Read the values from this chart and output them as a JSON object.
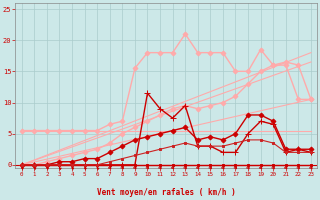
{
  "bg_color": "#cce8e8",
  "grid_color": "#aacccc",
  "axis_color": "#cc0000",
  "xlabel": "Vent moyen/en rafales ( km/h )",
  "xlabel_color": "#cc0000",
  "tick_color": "#cc0000",
  "xlim": [
    -0.5,
    23.5
  ],
  "ylim": [
    -0.5,
    26
  ],
  "yticks": [
    0,
    5,
    10,
    15,
    20,
    25
  ],
  "xticks": [
    0,
    1,
    2,
    3,
    4,
    5,
    6,
    7,
    8,
    9,
    10,
    11,
    12,
    13,
    14,
    15,
    16,
    17,
    18,
    19,
    20,
    21,
    22,
    23
  ],
  "series": [
    {
      "x": [
        0,
        23
      ],
      "y": [
        5.5,
        5.5
      ],
      "color": "#ffaaaa",
      "linewidth": 0.8,
      "marker": null,
      "linestyle": "-"
    },
    {
      "x": [
        0,
        23
      ],
      "y": [
        0,
        10.5
      ],
      "color": "#ffaaaa",
      "linewidth": 0.8,
      "marker": null,
      "linestyle": "-"
    },
    {
      "x": [
        0,
        23
      ],
      "y": [
        0,
        18
      ],
      "color": "#ffaaaa",
      "linewidth": 0.8,
      "marker": null,
      "linestyle": "-"
    },
    {
      "x": [
        0,
        23
      ],
      "y": [
        0,
        16.5
      ],
      "color": "#ffaaaa",
      "linewidth": 0.8,
      "marker": null,
      "linestyle": "-"
    },
    {
      "x": [
        0,
        1,
        2,
        3,
        4,
        5,
        6,
        7,
        8,
        9,
        10,
        11,
        12,
        13,
        14,
        15,
        16,
        17,
        18,
        19,
        20,
        21,
        22,
        23
      ],
      "y": [
        5.5,
        5.5,
        5.5,
        5.5,
        5.5,
        5.5,
        5.5,
        6.5,
        7.0,
        15.5,
        18,
        18,
        18,
        21,
        18,
        18,
        18,
        15,
        15,
        18.5,
        16,
        16,
        10.5,
        10.5
      ],
      "color": "#ffaaaa",
      "linewidth": 1.0,
      "marker": "D",
      "markersize": 2.5,
      "linestyle": "-"
    },
    {
      "x": [
        0,
        1,
        2,
        3,
        4,
        5,
        6,
        7,
        8,
        9,
        10,
        11,
        12,
        13,
        14,
        15,
        16,
        17,
        18,
        19,
        20,
        21,
        22,
        23
      ],
      "y": [
        0,
        0,
        0.5,
        1,
        1.5,
        2,
        2.5,
        3.5,
        5,
        6,
        7,
        8,
        9,
        9.5,
        9,
        9.5,
        10,
        11,
        13,
        15,
        16,
        16.5,
        16,
        10.5
      ],
      "color": "#ffaaaa",
      "linewidth": 1.0,
      "marker": "D",
      "markersize": 2.5,
      "linestyle": "-"
    },
    {
      "x": [
        0,
        1,
        2,
        3,
        4,
        5,
        6,
        7,
        8,
        9,
        10,
        11,
        12,
        13,
        14,
        15,
        16,
        17,
        18,
        19,
        20,
        21,
        22,
        23
      ],
      "y": [
        0,
        0,
        0,
        0,
        0,
        0,
        0,
        0,
        0,
        0,
        11.5,
        9,
        7.5,
        9.5,
        3,
        3,
        2,
        2,
        5,
        7,
        6.5,
        2,
        2.5,
        2
      ],
      "color": "#cc0000",
      "linewidth": 1.0,
      "marker": "+",
      "markersize": 4,
      "linestyle": "-"
    },
    {
      "x": [
        0,
        1,
        2,
        3,
        4,
        5,
        6,
        7,
        8,
        9,
        10,
        11,
        12,
        13,
        14,
        15,
        16,
        17,
        18,
        19,
        20,
        21,
        22,
        23
      ],
      "y": [
        0,
        0,
        0,
        0,
        0,
        0,
        0,
        0,
        0,
        0,
        0,
        0,
        0,
        0,
        0,
        0,
        0,
        0,
        0,
        0,
        0,
        0,
        0,
        0
      ],
      "color": "#cc0000",
      "linewidth": 1.0,
      "marker": "s",
      "markersize": 2,
      "linestyle": "-"
    },
    {
      "x": [
        0,
        1,
        2,
        3,
        4,
        5,
        6,
        7,
        8,
        9,
        10,
        11,
        12,
        13,
        14,
        15,
        16,
        17,
        18,
        19,
        20,
        21,
        22,
        23
      ],
      "y": [
        0,
        0,
        0,
        0.5,
        0.5,
        1,
        1,
        2,
        3,
        4,
        4.5,
        5,
        5.5,
        6,
        4,
        4.5,
        4,
        5,
        8,
        8,
        7,
        2.5,
        2.5,
        2.5
      ],
      "color": "#cc0000",
      "linewidth": 1.0,
      "marker": "D",
      "markersize": 2.5,
      "linestyle": "-"
    },
    {
      "x": [
        0,
        1,
        2,
        3,
        4,
        5,
        6,
        7,
        8,
        9,
        10,
        11,
        12,
        13,
        14,
        15,
        16,
        17,
        18,
        19,
        20,
        21,
        22,
        23
      ],
      "y": [
        0,
        0,
        0,
        0,
        0,
        0,
        0,
        0.5,
        1,
        1.5,
        2,
        2.5,
        3,
        3.5,
        3,
        3,
        3,
        3.5,
        4,
        4,
        3.5,
        2,
        2,
        2
      ],
      "color": "#cc2222",
      "linewidth": 0.8,
      "marker": "s",
      "markersize": 2,
      "linestyle": "-"
    }
  ],
  "arrow_angles": [
    225,
    225,
    225,
    215,
    225,
    215,
    215,
    270,
    270,
    270,
    270,
    270,
    270,
    270,
    270,
    270,
    270,
    270,
    270,
    270,
    270,
    270,
    270,
    270
  ],
  "arrow_color": "#cc0000"
}
